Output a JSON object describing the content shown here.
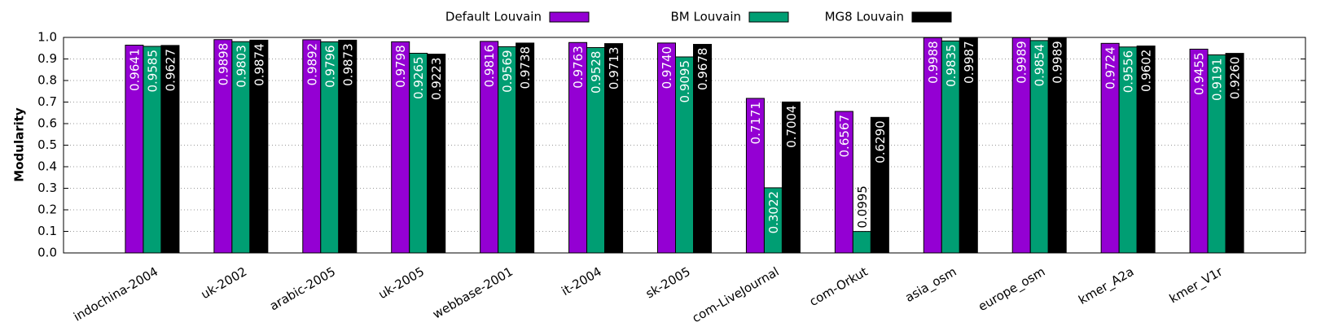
{
  "chart_data": {
    "type": "bar",
    "ylabel": "Modularity",
    "categories": [
      "indochina-2004",
      "uk-2002",
      "arabic-2005",
      "uk-2005",
      "webbase-2001",
      "it-2004",
      "sk-2005",
      "com-LiveJournal",
      "com-Orkut",
      "asia_osm",
      "europe_osm",
      "kmer_A2a",
      "kmer_V1r"
    ],
    "series": [
      {
        "name": "Default Louvain",
        "color": "#9400d3",
        "values": [
          0.9641,
          0.9898,
          0.9892,
          0.9798,
          0.9816,
          0.9763,
          0.974,
          0.7171,
          0.6567,
          0.9988,
          0.9989,
          0.9724,
          0.9455
        ],
        "value_labels": [
          "0.9641",
          "0.9898",
          "0.9892",
          "0.9798",
          "0.9816",
          "0.9763",
          "0.9740",
          "0.7171",
          "0.6567",
          "0.9988",
          "0.9989",
          "0.9724",
          "0.9455"
        ]
      },
      {
        "name": "BM Louvain",
        "color": "#009e73",
        "values": [
          0.9585,
          0.9803,
          0.9796,
          0.9265,
          0.9569,
          0.9528,
          0.9095,
          0.3022,
          0.0995,
          0.9835,
          0.9854,
          0.9556,
          0.9191
        ],
        "value_labels": [
          "0.9585",
          "0.9803",
          "0.9796",
          "0.9265",
          "0.9569",
          "0.9528",
          "0.9095",
          "0.3022",
          "0.0995",
          "0.9835",
          "0.9854",
          "0.9556",
          "0.9191"
        ]
      },
      {
        "name": "MG8 Louvain",
        "color": "#000000",
        "values": [
          0.9627,
          0.9874,
          0.9873,
          0.9223,
          0.9738,
          0.9713,
          0.9678,
          0.7004,
          0.629,
          0.9987,
          0.9989,
          0.9602,
          0.926
        ],
        "value_labels": [
          "0.9627",
          "0.9874",
          "0.9873",
          "0.9223",
          "0.9738",
          "0.9713",
          "0.9678",
          "0.7004",
          "0.6290",
          "0.9987",
          "0.9989",
          "0.9602",
          "0.9260"
        ]
      }
    ],
    "ylim": [
      0,
      1
    ],
    "yticks": [
      {
        "value": 0,
        "label": "0.0"
      },
      0.1,
      0.2,
      0.3,
      0.4,
      0.5,
      0.6,
      0.7,
      0.8,
      0.9,
      {
        "value": 1,
        "label": "1.0"
      }
    ],
    "grid": true,
    "legend": "top"
  }
}
